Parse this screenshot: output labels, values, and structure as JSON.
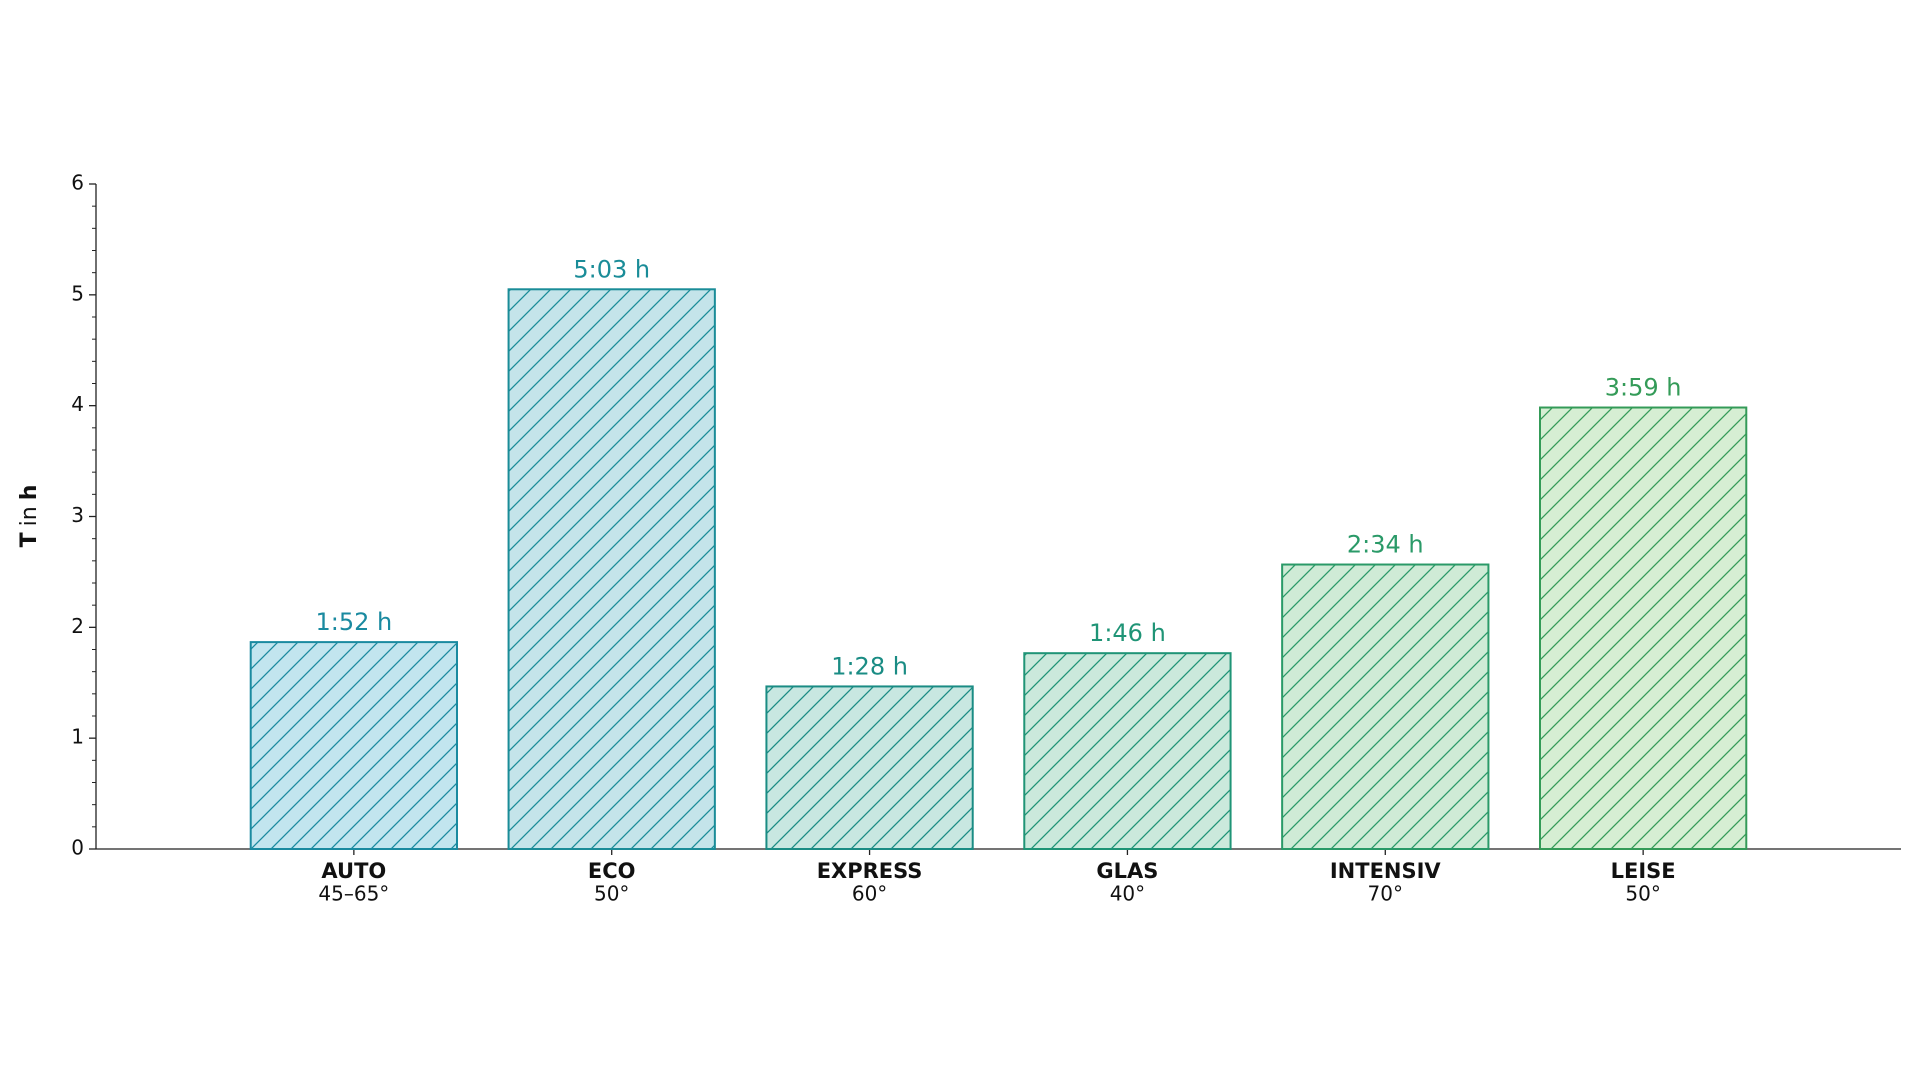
{
  "chart_data": {
    "type": "bar",
    "y_label": {
      "symbol": "T",
      "connector": "in",
      "unit": "h"
    },
    "categories": [
      "AUTO",
      "ECO",
      "EXPRESS",
      "GLAS",
      "INTENSIV",
      "LEISE"
    ],
    "category_sublabels": [
      "45–65°",
      "50°",
      "60°",
      "40°",
      "70°",
      "50°"
    ],
    "values": [
      1.8667,
      5.05,
      1.4667,
      1.7667,
      2.5667,
      3.9833
    ],
    "value_labels": [
      "1:52 h",
      "5:03 h",
      "1:28 h",
      "1:46 h",
      "2:34 h",
      "3:59 h"
    ],
    "colors": [
      "#1a8aa0",
      "#1a8c98",
      "#1a8c84",
      "#1f9476",
      "#2a9a68",
      "#349b58"
    ],
    "fill_colors": [
      "#c2e5ef",
      "#c4e4ea",
      "#c8e7e1",
      "#cbe9dc",
      "#cfebd6",
      "#d6eed3"
    ],
    "hatch": "/",
    "xlim": [
      -1,
      6
    ],
    "ylim": [
      0,
      6
    ],
    "yticks": [
      0,
      1,
      2,
      3,
      4,
      5,
      6
    ],
    "yminorticks": [
      0.2,
      0.4,
      0.6,
      0.8,
      1.2,
      1.4,
      1.6,
      1.8,
      2.2,
      2.4,
      2.6,
      2.8,
      3.2,
      3.4,
      3.6,
      3.8,
      4.2,
      4.4,
      4.6,
      4.8,
      5.2,
      5.4,
      5.6,
      5.8
    ],
    "grid": false
  }
}
